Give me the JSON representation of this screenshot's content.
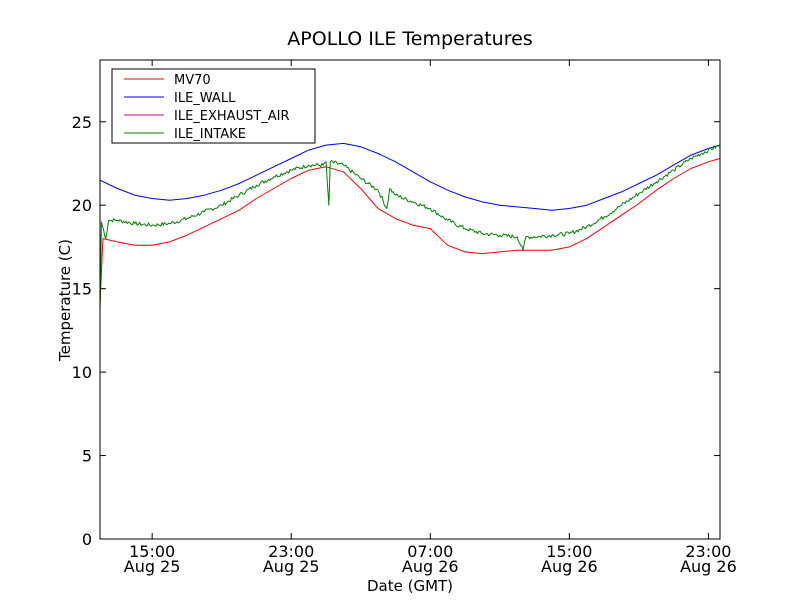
{
  "chart_data": {
    "type": "line",
    "title": "APOLLO ILE Temperatures",
    "xlabel": "Date (GMT)",
    "ylabel": "Temperature (C)",
    "ylim": [
      0,
      28.7
    ],
    "xlim": [
      "Aug 25 12:00",
      "Aug 26 23:40"
    ],
    "grid": false,
    "legend_position": "top-left",
    "y_ticks": [
      0,
      5,
      10,
      15,
      20,
      25
    ],
    "x_ticks": [
      {
        "time": "Aug 25 15:00",
        "label": "15:00",
        "date": "Aug 25"
      },
      {
        "time": "Aug 25 23:00",
        "label": "23:00",
        "date": "Aug 25"
      },
      {
        "time": "Aug 26 07:00",
        "label": "07:00",
        "date": "Aug 26"
      },
      {
        "time": "Aug 26 15:00",
        "label": "15:00",
        "date": "Aug 26"
      },
      {
        "time": "Aug 26 23:00",
        "label": "23:00",
        "date": "Aug 26"
      }
    ],
    "series": [
      {
        "name": "MV70",
        "color": "#ff0000",
        "points": [
          [
            "Aug 25 12:00",
            14.0
          ],
          [
            "Aug 25 12:10",
            18.0
          ],
          [
            "Aug 25 13:00",
            17.8
          ],
          [
            "Aug 25 14:00",
            17.6
          ],
          [
            "Aug 25 15:00",
            17.6
          ],
          [
            "Aug 25 16:00",
            17.8
          ],
          [
            "Aug 25 17:00",
            18.2
          ],
          [
            "Aug 25 18:00",
            18.7
          ],
          [
            "Aug 25 19:00",
            19.2
          ],
          [
            "Aug 25 20:00",
            19.7
          ],
          [
            "Aug 25 21:00",
            20.4
          ],
          [
            "Aug 25 22:00",
            21.0
          ],
          [
            "Aug 25 23:00",
            21.6
          ],
          [
            "Aug 26 00:00",
            22.1
          ],
          [
            "Aug 26 01:00",
            22.3
          ],
          [
            "Aug 26 02:00",
            22.0
          ],
          [
            "Aug 26 03:00",
            21.0
          ],
          [
            "Aug 26 04:00",
            19.8
          ],
          [
            "Aug 26 05:00",
            19.2
          ],
          [
            "Aug 26 06:00",
            18.8
          ],
          [
            "Aug 26 07:00",
            18.6
          ],
          [
            "Aug 26 08:00",
            17.6
          ],
          [
            "Aug 26 09:00",
            17.2
          ],
          [
            "Aug 26 10:00",
            17.1
          ],
          [
            "Aug 26 11:00",
            17.2
          ],
          [
            "Aug 26 12:00",
            17.3
          ],
          [
            "Aug 26 13:00",
            17.3
          ],
          [
            "Aug 26 14:00",
            17.3
          ],
          [
            "Aug 26 15:00",
            17.5
          ],
          [
            "Aug 26 16:00",
            18.0
          ],
          [
            "Aug 26 17:00",
            18.7
          ],
          [
            "Aug 26 18:00",
            19.4
          ],
          [
            "Aug 26 19:00",
            20.1
          ],
          [
            "Aug 26 20:00",
            20.9
          ],
          [
            "Aug 26 21:00",
            21.6
          ],
          [
            "Aug 26 22:00",
            22.2
          ],
          [
            "Aug 26 23:00",
            22.6
          ],
          [
            "Aug 26 23:40",
            22.8
          ]
        ]
      },
      {
        "name": "ILE_WALL",
        "color": "#0000ff",
        "points": [
          [
            "Aug 25 12:00",
            21.5
          ],
          [
            "Aug 25 13:00",
            21.0
          ],
          [
            "Aug 25 14:00",
            20.6
          ],
          [
            "Aug 25 15:00",
            20.4
          ],
          [
            "Aug 25 16:00",
            20.3
          ],
          [
            "Aug 25 17:00",
            20.4
          ],
          [
            "Aug 25 18:00",
            20.6
          ],
          [
            "Aug 25 19:00",
            20.9
          ],
          [
            "Aug 25 20:00",
            21.3
          ],
          [
            "Aug 25 21:00",
            21.8
          ],
          [
            "Aug 25 22:00",
            22.3
          ],
          [
            "Aug 25 23:00",
            22.8
          ],
          [
            "Aug 26 00:00",
            23.3
          ],
          [
            "Aug 26 01:00",
            23.6
          ],
          [
            "Aug 26 02:00",
            23.7
          ],
          [
            "Aug 26 03:00",
            23.5
          ],
          [
            "Aug 26 04:00",
            23.1
          ],
          [
            "Aug 26 05:00",
            22.6
          ],
          [
            "Aug 26 06:00",
            22.0
          ],
          [
            "Aug 26 07:00",
            21.4
          ],
          [
            "Aug 26 08:00",
            20.9
          ],
          [
            "Aug 26 09:00",
            20.5
          ],
          [
            "Aug 26 10:00",
            20.2
          ],
          [
            "Aug 26 11:00",
            20.0
          ],
          [
            "Aug 26 12:00",
            19.9
          ],
          [
            "Aug 26 13:00",
            19.8
          ],
          [
            "Aug 26 14:00",
            19.7
          ],
          [
            "Aug 26 15:00",
            19.8
          ],
          [
            "Aug 26 16:00",
            20.0
          ],
          [
            "Aug 26 17:00",
            20.4
          ],
          [
            "Aug 26 18:00",
            20.8
          ],
          [
            "Aug 26 19:00",
            21.3
          ],
          [
            "Aug 26 20:00",
            21.8
          ],
          [
            "Aug 26 21:00",
            22.4
          ],
          [
            "Aug 26 22:00",
            23.0
          ],
          [
            "Aug 26 23:00",
            23.4
          ],
          [
            "Aug 26 23:40",
            23.6
          ]
        ]
      },
      {
        "name": "ILE_EXHAUST_AIR",
        "color": "#bf00bf",
        "points": []
      },
      {
        "name": "ILE_INTAKE",
        "color": "#008000",
        "noise": 0.12,
        "points": [
          [
            "Aug 25 12:00",
            13.6
          ],
          [
            "Aug 25 12:05",
            19.0
          ],
          [
            "Aug 25 12:20",
            18.0
          ],
          [
            "Aug 25 12:30",
            19.1
          ],
          [
            "Aug 25 13:00",
            19.1
          ],
          [
            "Aug 25 14:00",
            18.9
          ],
          [
            "Aug 25 15:00",
            18.8
          ],
          [
            "Aug 25 16:00",
            18.9
          ],
          [
            "Aug 25 17:00",
            19.2
          ],
          [
            "Aug 25 18:00",
            19.6
          ],
          [
            "Aug 25 19:00",
            20.0
          ],
          [
            "Aug 25 20:00",
            20.6
          ],
          [
            "Aug 25 21:00",
            21.2
          ],
          [
            "Aug 25 22:00",
            21.7
          ],
          [
            "Aug 25 23:00",
            22.1
          ],
          [
            "Aug 26 00:00",
            22.4
          ],
          [
            "Aug 26 00:50",
            22.4
          ],
          [
            "Aug 26 01:00",
            22.6
          ],
          [
            "Aug 26 01:10",
            20.0
          ],
          [
            "Aug 26 01:15",
            22.6
          ],
          [
            "Aug 26 02:00",
            22.4
          ],
          [
            "Aug 26 03:00",
            21.6
          ],
          [
            "Aug 26 04:00",
            20.9
          ],
          [
            "Aug 26 04:30",
            19.8
          ],
          [
            "Aug 26 04:40",
            21.0
          ],
          [
            "Aug 26 05:00",
            20.6
          ],
          [
            "Aug 26 06:00",
            20.2
          ],
          [
            "Aug 26 07:00",
            19.8
          ],
          [
            "Aug 26 08:00",
            19.1
          ],
          [
            "Aug 26 09:00",
            18.6
          ],
          [
            "Aug 26 10:00",
            18.3
          ],
          [
            "Aug 26 11:00",
            18.2
          ],
          [
            "Aug 26 12:00",
            18.1
          ],
          [
            "Aug 26 12:20",
            17.3
          ],
          [
            "Aug 26 12:30",
            18.1
          ],
          [
            "Aug 26 13:00",
            18.1
          ],
          [
            "Aug 26 14:00",
            18.2
          ],
          [
            "Aug 26 15:00",
            18.3
          ],
          [
            "Aug 26 16:00",
            18.7
          ],
          [
            "Aug 26 17:00",
            19.3
          ],
          [
            "Aug 26 18:00",
            20.0
          ],
          [
            "Aug 26 19:00",
            20.7
          ],
          [
            "Aug 26 20:00",
            21.4
          ],
          [
            "Aug 26 21:00",
            22.1
          ],
          [
            "Aug 26 22:00",
            22.8
          ],
          [
            "Aug 26 23:00",
            23.3
          ],
          [
            "Aug 26 23:40",
            23.6
          ]
        ]
      }
    ]
  }
}
